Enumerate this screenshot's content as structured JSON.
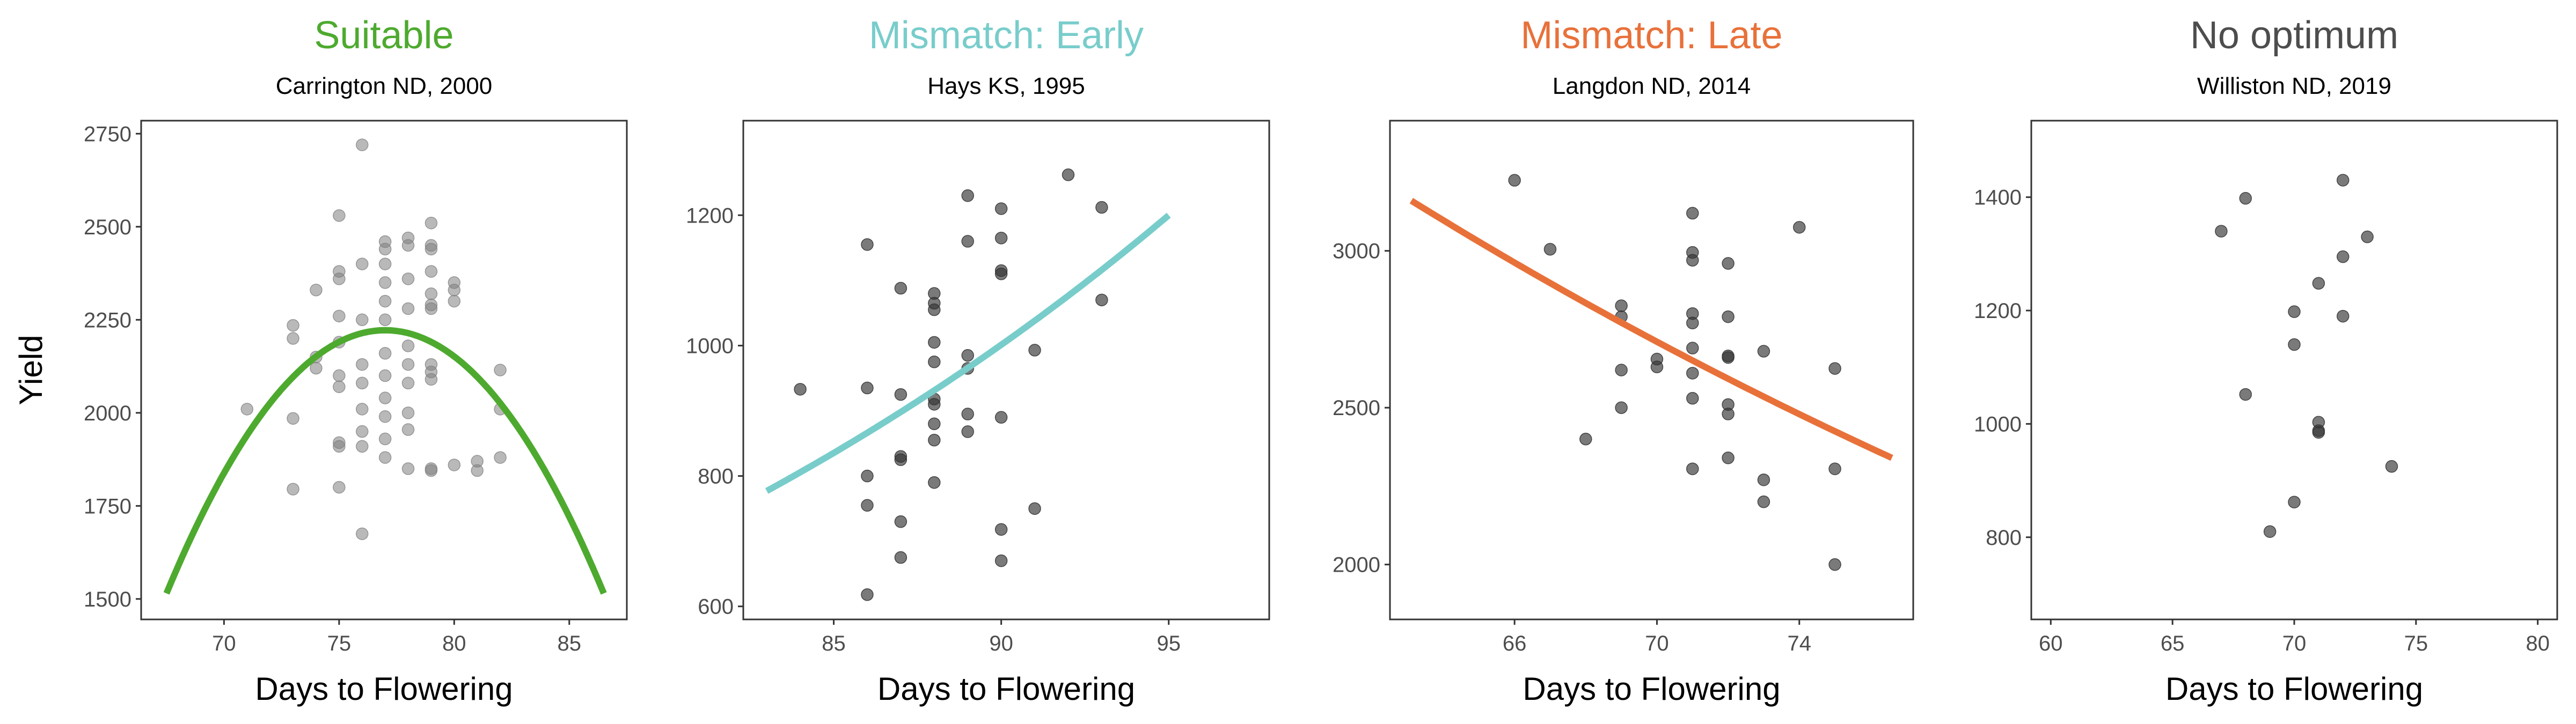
{
  "chart_data": [
    {
      "type": "scatter",
      "title": "Suitable",
      "title_color": "#4daa2e",
      "subtitle": "Carrington ND, 2000",
      "xlabel": "Days to Flowering",
      "ylabel": "Yield",
      "xlim": [
        66.4,
        87.5
      ],
      "ylim": [
        1445,
        2785
      ],
      "xticks": [
        70,
        75,
        80,
        85
      ],
      "yticks": [
        1500,
        1750,
        2000,
        2250,
        2500,
        2750
      ],
      "point_color": "#808080",
      "point_opacity": 0.55,
      "points": [
        [
          71,
          2010
        ],
        [
          73,
          1795
        ],
        [
          73,
          1985
        ],
        [
          73,
          2200
        ],
        [
          73,
          2235
        ],
        [
          74,
          2150
        ],
        [
          74,
          2120
        ],
        [
          74,
          2330
        ],
        [
          75,
          2530
        ],
        [
          75,
          2380
        ],
        [
          75,
          2360
        ],
        [
          75,
          2260
        ],
        [
          75,
          2190
        ],
        [
          75,
          2100
        ],
        [
          75,
          2070
        ],
        [
          75,
          1920
        ],
        [
          75,
          1910
        ],
        [
          75,
          1800
        ],
        [
          76,
          2720
        ],
        [
          76,
          2400
        ],
        [
          76,
          2250
        ],
        [
          76,
          2130
        ],
        [
          76,
          2080
        ],
        [
          76,
          2010
        ],
        [
          76,
          1950
        ],
        [
          76,
          1910
        ],
        [
          76,
          1675
        ],
        [
          77,
          2460
        ],
        [
          77,
          2440
        ],
        [
          77,
          2400
        ],
        [
          77,
          2350
        ],
        [
          77,
          2300
        ],
        [
          77,
          2250
        ],
        [
          77,
          2160
        ],
        [
          77,
          2100
        ],
        [
          77,
          2040
        ],
        [
          77,
          1990
        ],
        [
          77,
          1930
        ],
        [
          77,
          1880
        ],
        [
          78,
          2470
        ],
        [
          78,
          2450
        ],
        [
          78,
          2360
        ],
        [
          78,
          2280
        ],
        [
          78,
          2180
        ],
        [
          78,
          2130
        ],
        [
          78,
          2080
        ],
        [
          78,
          2000
        ],
        [
          78,
          1955
        ],
        [
          78,
          1850
        ],
        [
          79,
          2510
        ],
        [
          79,
          2450
        ],
        [
          79,
          2440
        ],
        [
          79,
          2380
        ],
        [
          79,
          2320
        ],
        [
          79,
          2290
        ],
        [
          79,
          2280
        ],
        [
          79,
          2130
        ],
        [
          79,
          2110
        ],
        [
          79,
          2090
        ],
        [
          79,
          1850
        ],
        [
          79,
          1845
        ],
        [
          80,
          2350
        ],
        [
          80,
          2330
        ],
        [
          80,
          2300
        ],
        [
          80,
          1860
        ],
        [
          81,
          1870
        ],
        [
          81,
          1845
        ],
        [
          82,
          2115
        ],
        [
          82,
          2010
        ],
        [
          82,
          1880
        ]
      ],
      "curve": {
        "type": "quadratic",
        "color": "#4daa2e",
        "x_range": [
          67.5,
          86.5
        ],
        "peak_x": 77.0,
        "peak_y": 2222,
        "end_y": 1515
      }
    },
    {
      "type": "scatter",
      "title": "Mismatch: Early",
      "title_color": "#78cdcb",
      "subtitle": "Hays KS, 1995",
      "xlabel": "Days to Flowering",
      "xlim": [
        82.3,
        98.0
      ],
      "ylim": [
        580,
        1345
      ],
      "xticks": [
        85,
        90,
        95
      ],
      "yticks": [
        600,
        800,
        1000,
        1200
      ],
      "point_color": "#333333",
      "point_opacity": 0.65,
      "points": [
        [
          84,
          933
        ],
        [
          86,
          1155
        ],
        [
          86,
          935
        ],
        [
          86,
          800
        ],
        [
          86,
          755
        ],
        [
          86,
          618
        ],
        [
          87,
          1088
        ],
        [
          87,
          925
        ],
        [
          87,
          830
        ],
        [
          87,
          825
        ],
        [
          87,
          730
        ],
        [
          87,
          675
        ],
        [
          88,
          1080
        ],
        [
          88,
          1065
        ],
        [
          88,
          1055
        ],
        [
          88,
          1005
        ],
        [
          88,
          975
        ],
        [
          88,
          918
        ],
        [
          88,
          910
        ],
        [
          88,
          880
        ],
        [
          88,
          855
        ],
        [
          88,
          790
        ],
        [
          89,
          1230
        ],
        [
          89,
          1160
        ],
        [
          89,
          985
        ],
        [
          89,
          965
        ],
        [
          89,
          895
        ],
        [
          89,
          868
        ],
        [
          90,
          1210
        ],
        [
          90,
          1165
        ],
        [
          90,
          1115
        ],
        [
          90,
          1110
        ],
        [
          90,
          890
        ],
        [
          90,
          718
        ],
        [
          90,
          670
        ],
        [
          91,
          993
        ],
        [
          91,
          750
        ],
        [
          92,
          1262
        ],
        [
          93,
          1212
        ],
        [
          93,
          1070
        ]
      ],
      "curve": {
        "type": "exponential",
        "color": "#78cdcb",
        "x_range": [
          83,
          95
        ],
        "y_start": 777,
        "y_end": 1200
      }
    },
    {
      "type": "scatter",
      "title": "Mismatch: Late",
      "title_color": "#e8713a",
      "subtitle": "Langdon ND, 2014",
      "xlabel": "Days to Flowering",
      "xlim": [
        62.5,
        77.2
      ],
      "ylim": [
        1825,
        3415
      ],
      "xticks": [
        66,
        70,
        74
      ],
      "yticks": [
        2000,
        2500,
        3000
      ],
      "point_color": "#333333",
      "point_opacity": 0.65,
      "points": [
        [
          66,
          3225
        ],
        [
          67,
          3005
        ],
        [
          68,
          2400
        ],
        [
          69,
          2825
        ],
        [
          69,
          2790
        ],
        [
          69,
          2620
        ],
        [
          69,
          2500
        ],
        [
          70,
          2655
        ],
        [
          70,
          2630
        ],
        [
          71,
          3120
        ],
        [
          71,
          2995
        ],
        [
          71,
          2970
        ],
        [
          71,
          2800
        ],
        [
          71,
          2770
        ],
        [
          71,
          2690
        ],
        [
          71,
          2610
        ],
        [
          71,
          2530
        ],
        [
          71,
          2305
        ],
        [
          72,
          2960
        ],
        [
          72,
          2790
        ],
        [
          72,
          2665
        ],
        [
          72,
          2660
        ],
        [
          72,
          2510
        ],
        [
          72,
          2480
        ],
        [
          72,
          2340
        ],
        [
          73,
          2680
        ],
        [
          73,
          2270
        ],
        [
          73,
          2200
        ],
        [
          74,
          3075
        ],
        [
          75,
          2625
        ],
        [
          75,
          2305
        ],
        [
          75,
          2000
        ]
      ],
      "curve": {
        "type": "exponential",
        "color": "#e8713a",
        "x_range": [
          63.1,
          76.6
        ],
        "y_start": 3160,
        "y_end": 2340
      }
    },
    {
      "type": "scatter",
      "title": "No optimum",
      "title_color": "#4d4d4d",
      "subtitle": "Williston ND, 2019",
      "xlabel": "Days to Flowering",
      "xlim": [
        59.2,
        80.8
      ],
      "ylim": [
        655,
        1535
      ],
      "xticks": [
        60,
        65,
        70,
        75,
        80
      ],
      "yticks": [
        800,
        1000,
        1200,
        1400
      ],
      "point_color": "#333333",
      "point_opacity": 0.65,
      "points": [
        [
          67,
          1340
        ],
        [
          68,
          1398
        ],
        [
          68,
          1052
        ],
        [
          69,
          810
        ],
        [
          70,
          1198
        ],
        [
          70,
          1140
        ],
        [
          70,
          862
        ],
        [
          71,
          1248
        ],
        [
          71,
          1003
        ],
        [
          71,
          988
        ],
        [
          71,
          985
        ],
        [
          72,
          1430
        ],
        [
          72,
          1295
        ],
        [
          72,
          1190
        ],
        [
          73,
          1330
        ],
        [
          74,
          925
        ]
      ]
    }
  ]
}
